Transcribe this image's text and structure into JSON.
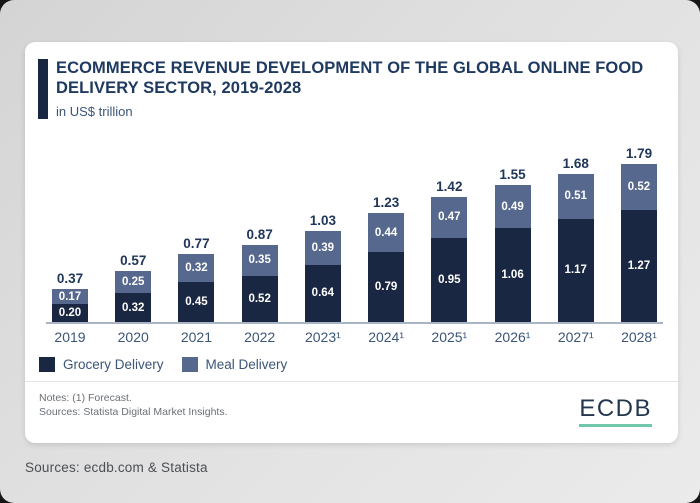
{
  "card": {
    "title": "ECOMMERCE REVENUE DEVELOPMENT OF THE GLOBAL ONLINE FOOD DELIVERY SECTOR, 2019-2028",
    "subtitle": "in US$ trillion",
    "notes_line1": "Notes: (1) Forecast.",
    "notes_line2": "Sources: Statista Digital Market Insights.",
    "logo_text": "ECDB"
  },
  "legend": [
    {
      "label": "Grocery Delivery",
      "color": "#1a2742"
    },
    {
      "label": "Meal Delivery",
      "color": "#56688d"
    }
  ],
  "chart_data": {
    "type": "bar",
    "stacked": true,
    "title": "ECOMMERCE REVENUE DEVELOPMENT OF THE GLOBAL ONLINE FOOD DELIVERY SECTOR, 2019-2028",
    "unit_label": "in US$ trillion",
    "categories": [
      "2019",
      "2020",
      "2021",
      "2022",
      "2023¹",
      "2024¹",
      "2025¹",
      "2026¹",
      "2027¹",
      "2028¹"
    ],
    "series": [
      {
        "name": "Grocery Delivery",
        "color": "#1a2742",
        "values": [
          0.2,
          0.32,
          0.45,
          0.52,
          0.64,
          0.79,
          0.95,
          1.06,
          1.17,
          1.27
        ]
      },
      {
        "name": "Meal Delivery",
        "color": "#56688d",
        "values": [
          0.17,
          0.25,
          0.32,
          0.35,
          0.39,
          0.44,
          0.47,
          0.49,
          0.51,
          0.52
        ]
      }
    ],
    "totals": [
      0.37,
      0.57,
      0.77,
      0.87,
      1.03,
      1.23,
      1.42,
      1.55,
      1.68,
      1.79
    ],
    "ylim": [
      0,
      1.9
    ],
    "grid": false,
    "legend_position": "bottom-left",
    "value_decimals": 2
  },
  "footer_caption": "Sources: ecdb.com & Statista",
  "colors": {
    "accent_navy": "#1a2742",
    "slate_blue": "#56688d",
    "title_navy": "#1f3a60",
    "axis_line": "#a9b4c4",
    "logo_teal": "#72c6a9",
    "card_bg": "#ffffff",
    "page_bg": "#e0e0e0"
  }
}
